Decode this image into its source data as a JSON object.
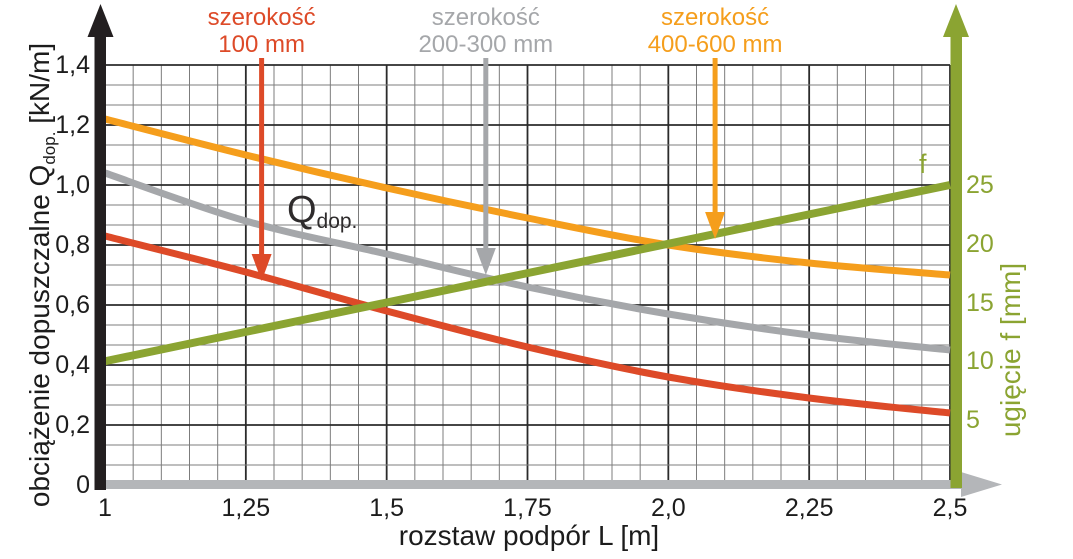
{
  "colors": {
    "red": "#dd4a28",
    "gray_curve": "#a5a7aa",
    "orange": "#f59e1c",
    "green": "#8ba432",
    "axis_black": "#231f20",
    "axis_gray": "#b4b6b9",
    "grid_major": "#2b2b2b",
    "grid_minor": "#7c7c7c",
    "text_dark": "#1c1c1c",
    "qdop_text": "#2e2b2c"
  },
  "chart_data": {
    "type": "line",
    "title": "",
    "xlabel": "rozstaw podpór L [m]",
    "ylabel_left_prefix": "obciążenie dopuszczalne Q",
    "ylabel_left_sub": "dop.",
    "ylabel_left_suffix": " [kN/m]",
    "ylabel_right": "ugięcie f [mm]",
    "xlim": [
      1,
      2.5
    ],
    "ylim_left": [
      0,
      1.4
    ],
    "ylim_right_ticks_span": [
      5,
      25
    ],
    "grid": {
      "x_minor_divisions": 30,
      "x_major_every": 5,
      "y_minor_divisions": 21,
      "y_major_every": 3,
      "grid_on": true
    },
    "x_ticks": [
      {
        "value": 1,
        "label": "1"
      },
      {
        "value": 1.25,
        "label": "1,25"
      },
      {
        "value": 1.5,
        "label": "1,5"
      },
      {
        "value": 1.75,
        "label": "1,75"
      },
      {
        "value": 2,
        "label": "2,0"
      },
      {
        "value": 2.25,
        "label": "2,25"
      },
      {
        "value": 2.5,
        "label": "2,5"
      }
    ],
    "y_left_ticks": [
      {
        "value": 0,
        "label": "0"
      },
      {
        "value": 0.2,
        "label": "0,2"
      },
      {
        "value": 0.4,
        "label": "0,4"
      },
      {
        "value": 0.6,
        "label": "0,6"
      },
      {
        "value": 0.8,
        "label": "0,8"
      },
      {
        "value": 1.0,
        "label": "1,0"
      },
      {
        "value": 1.2,
        "label": "1,2"
      },
      {
        "value": 1.4,
        "label": "1,4"
      }
    ],
    "y_right_ticks": [
      {
        "value": 5,
        "label": "5"
      },
      {
        "value": 10,
        "label": "10"
      },
      {
        "value": 15,
        "label": "15"
      },
      {
        "value": 20,
        "label": "20"
      },
      {
        "value": 25,
        "label": "25"
      }
    ],
    "series": [
      {
        "id": "width-100",
        "name": "szerokość 100 mm",
        "label_lines": [
          "szerokość",
          "100 mm"
        ],
        "color": "#dd4a28",
        "axis": "left",
        "x": [
          1,
          1.25,
          1.5,
          1.75,
          2,
          2.25,
          2.5
        ],
        "y": [
          0.83,
          0.71,
          0.58,
          0.46,
          0.36,
          0.29,
          0.24
        ],
        "callout": {
          "L": 1.278,
          "tip_value": 0.68
        }
      },
      {
        "id": "width-200-300",
        "name": "szerokość 200-300 mm",
        "label_lines": [
          "szerokość",
          "200-300 mm"
        ],
        "color": "#a5a7aa",
        "axis": "left",
        "x": [
          1,
          1.25,
          1.5,
          1.75,
          2,
          2.25,
          2.5
        ],
        "y": [
          1.04,
          0.88,
          0.77,
          0.66,
          0.57,
          0.5,
          0.45
        ],
        "callout": {
          "L": 1.676,
          "tip_value": 0.7
        }
      },
      {
        "id": "width-400-600",
        "name": "szerokość 400-600 mm",
        "label_lines": [
          "szerokość",
          "400-600 mm"
        ],
        "color": "#f59e1c",
        "axis": "left",
        "x": [
          1,
          1.25,
          1.5,
          1.75,
          2,
          2.25,
          2.5
        ],
        "y": [
          1.22,
          1.1,
          0.99,
          0.89,
          0.8,
          0.74,
          0.7
        ],
        "callout": {
          "L": 2.083,
          "tip_value": 0.82
        }
      },
      {
        "id": "deflection-f",
        "name": "f",
        "color": "#8ba432",
        "axis": "right",
        "x": [
          1,
          1.25,
          1.5,
          1.75,
          2,
          2.25,
          2.5
        ],
        "y": [
          10,
          12.5,
          15,
          17.5,
          20,
          22.5,
          25
        ]
      }
    ],
    "annotations": [
      {
        "id": "qdop-label",
        "text_main": "Q",
        "text_sub": "dop.",
        "L": 1.323,
        "value": 0.973,
        "color": "#2e2b2c"
      },
      {
        "id": "f-label",
        "text": "f",
        "L": 2.445,
        "value": 1.12,
        "color": "#8ba432"
      }
    ],
    "legend_position": "top-inline-callouts"
  }
}
